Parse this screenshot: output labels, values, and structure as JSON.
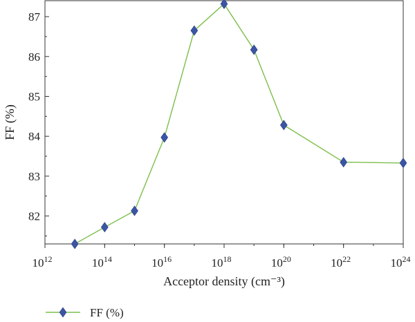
{
  "chart_data": {
    "type": "line",
    "title": "",
    "xlabel": "Acceptor density (cm⁻³)",
    "ylabel": "FF (%)",
    "x_scale": "log",
    "x_exponents": [
      13,
      14,
      15,
      16,
      17,
      18,
      19,
      20,
      22,
      24
    ],
    "xlim_exponents": [
      12,
      24
    ],
    "ylim": [
      81.3,
      87.4
    ],
    "x_tick_base": "10",
    "x_tick_exponents": [
      "12",
      "14",
      "16",
      "18",
      "20",
      "22",
      "24"
    ],
    "y_ticks": [
      "82",
      "83",
      "84",
      "85",
      "86",
      "87"
    ],
    "grid": false,
    "legend_position": "bottom-left",
    "series": [
      {
        "name": "FF (%)",
        "line_color": "#7cbf4a",
        "marker_color": "#3b55a4",
        "marker": "diamond",
        "values": [
          81.3,
          81.72,
          82.13,
          83.97,
          86.65,
          87.32,
          86.17,
          84.28,
          83.35,
          83.33
        ]
      }
    ]
  }
}
